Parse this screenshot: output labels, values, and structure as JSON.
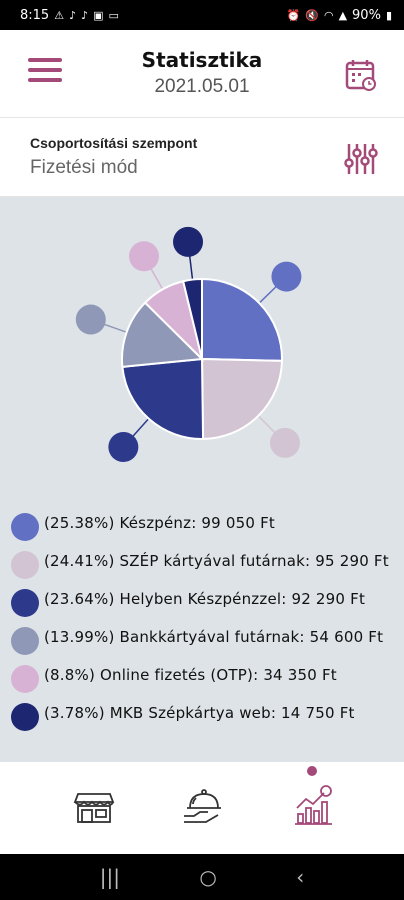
{
  "status_bar": {
    "time": "8:15",
    "battery": "90%"
  },
  "header": {
    "title": "Statisztika",
    "date": "2021.05.01"
  },
  "grouping": {
    "label": "Csoportosítási szempont",
    "value": "Fizetési mód"
  },
  "colors": {
    "accent": "#a34a79",
    "chart_bg": "#dde3e6"
  },
  "chart_data": {
    "type": "pie",
    "title": "",
    "series": [
      {
        "name": "Készpénz",
        "percent": 25.38,
        "amount": "99 050 Ft",
        "color": "#6270c4"
      },
      {
        "name": "SZÉP kártyával futárnak",
        "percent": 24.41,
        "amount": "95 290 Ft",
        "color": "#d3c4d3"
      },
      {
        "name": "Helyben Készpénzzel",
        "percent": 23.64,
        "amount": "92 290 Ft",
        "color": "#2d3a8c"
      },
      {
        "name": "Bankkártyával futárnak",
        "percent": 13.99,
        "amount": "54 600 Ft",
        "color": "#8f98b6"
      },
      {
        "name": "Online fizetés (OTP)",
        "percent": 8.8,
        "amount": "34 350 Ft",
        "color": "#d8b2d4"
      },
      {
        "name": "MKB Szépkártya web",
        "percent": 3.78,
        "amount": "14 750 Ft",
        "color": "#1d2670"
      }
    ]
  },
  "legend": [
    {
      "text": "(25.38%) Készpénz: 99 050 Ft",
      "color": "#6270c4"
    },
    {
      "text": "(24.41%) SZÉP kártyával futárnak: 95 290 Ft",
      "color": "#d3c4d3"
    },
    {
      "text": "(23.64%) Helyben Készpénzzel: 92 290 Ft",
      "color": "#2d3a8c"
    },
    {
      "text": "(13.99%) Bankkártyával futárnak: 54 600 Ft",
      "color": "#8f98b6"
    },
    {
      "text": "(8.8%) Online fizetés (OTP): 34 350 Ft",
      "color": "#d8b2d4"
    },
    {
      "text": "(3.78%) MKB Szépkártya web: 14 750 Ft",
      "color": "#1d2670"
    }
  ],
  "bottom_nav": {
    "items": [
      {
        "icon": "storefront-icon"
      },
      {
        "icon": "delivery-cloche-icon"
      },
      {
        "icon": "statistics-chart-icon",
        "active": true
      }
    ]
  },
  "system_nav": {
    "recents": "|||",
    "home": "○",
    "back": "‹"
  }
}
